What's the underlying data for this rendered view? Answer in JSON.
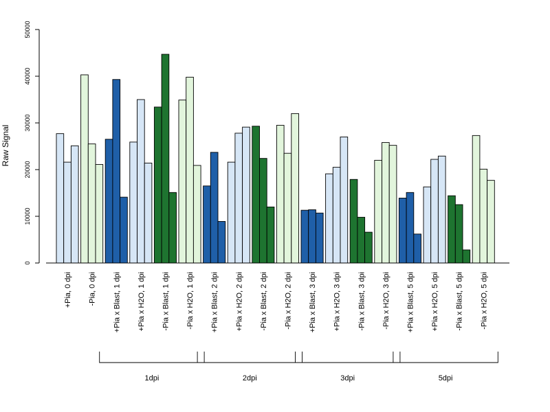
{
  "chart_data": {
    "type": "bar",
    "ylabel": "Raw Signal",
    "xlabel": "",
    "ylim": [
      0,
      50000
    ],
    "yticks": [
      0,
      10000,
      20000,
      30000,
      40000,
      50000
    ],
    "grid": false,
    "legend": "none",
    "colors": {
      "light_blue": "#d6e6f6",
      "light_green": "#e2f5dc",
      "dark_blue": "#1f5fa8",
      "dark_green": "#1e7430",
      "border": "#000000"
    },
    "categories": [
      {
        "label": "+Pia, 0 dpi",
        "values": [
          27700,
          21600,
          25100
        ],
        "color": "light_blue"
      },
      {
        "label": "-Pia, 0 dpi",
        "values": [
          40300,
          25500,
          21100
        ],
        "color": "light_green"
      },
      {
        "label": "+Pia x Blast, 1 dpi",
        "values": [
          26500,
          39300,
          14100
        ],
        "color": "dark_blue"
      },
      {
        "label": "+Pia x H2O, 1 dpi",
        "values": [
          25900,
          35000,
          21400
        ],
        "color": "light_blue"
      },
      {
        "label": "-Pia x Blast, 1 dpi",
        "values": [
          33400,
          44700,
          15100
        ],
        "color": "dark_green"
      },
      {
        "label": "-Pia x H2O, 1 dpi",
        "values": [
          34900,
          39800,
          20900
        ],
        "color": "light_green"
      },
      {
        "label": "+Pia x Blast, 2 dpi",
        "values": [
          16500,
          23700,
          8900
        ],
        "color": "dark_blue"
      },
      {
        "label": "+Pia x H2O, 2 dpi",
        "values": [
          21600,
          27800,
          29100
        ],
        "color": "light_blue"
      },
      {
        "label": "-Pia x Blast, 2 dpi",
        "values": [
          29300,
          22400,
          12000
        ],
        "color": "dark_green"
      },
      {
        "label": "-Pia x H2O, 2 dpi",
        "values": [
          29500,
          23500,
          32000
        ],
        "color": "light_green"
      },
      {
        "label": "+Pia x Blast, 3 dpi",
        "values": [
          11300,
          11400,
          10700
        ],
        "color": "dark_blue"
      },
      {
        "label": "+Pia x H2O, 3 dpi",
        "values": [
          19100,
          20500,
          27000
        ],
        "color": "light_blue"
      },
      {
        "label": "-Pia x Blast, 3 dpi",
        "values": [
          17900,
          9800,
          6600
        ],
        "color": "dark_green"
      },
      {
        "label": "-Pia x H2O, 3 dpi",
        "values": [
          22000,
          25800,
          25200
        ],
        "color": "light_green"
      },
      {
        "label": "+Pia x Blast, 5 dpi",
        "values": [
          13900,
          15100,
          6200
        ],
        "color": "dark_blue"
      },
      {
        "label": "+Pia x H2O, 5 dpi",
        "values": [
          16300,
          22200,
          22900
        ],
        "color": "light_blue"
      },
      {
        "label": "-Pia x Blast, 5 dpi",
        "values": [
          14400,
          12500,
          2800
        ],
        "color": "dark_green"
      },
      {
        "label": "-Pia x H2O, 5 dpi",
        "values": [
          27300,
          20100,
          17700
        ],
        "color": "light_green"
      }
    ],
    "groups": [
      {
        "label": "1dpi",
        "from": 2,
        "to": 5
      },
      {
        "label": "2dpi",
        "from": 6,
        "to": 9
      },
      {
        "label": "3dpi",
        "from": 10,
        "to": 13
      },
      {
        "label": "5dpi",
        "from": 14,
        "to": 17
      }
    ]
  }
}
